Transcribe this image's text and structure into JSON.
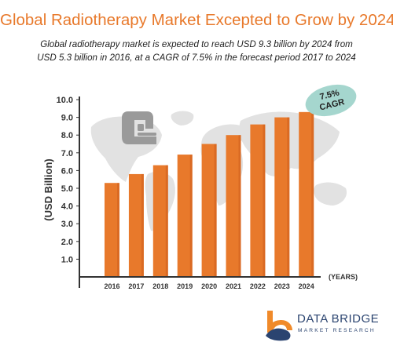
{
  "header": {
    "title": "Global Radiotherapy Market Excepted to Grow by 2024",
    "subtitle_line1": "Global radiotherapy market is expected to reach USD 9.3 billion by 2024 from",
    "subtitle_line2": "USD 5.3 billion in 2016, at a CAGR of 7.5% in the forecast period 2017 to 2024"
  },
  "badge": {
    "line1": "7.5%",
    "line2": "CAGR",
    "color": "#A5D6CE"
  },
  "brand": {
    "name": "DATA BRIDGE",
    "tagline": "MARKET RESEARCH",
    "orange": "#F08A2A",
    "navy": "#2B4470"
  },
  "colors": {
    "bar": "#E8792B",
    "bar_dark": "#C9591A",
    "map": "#E2E2E2",
    "icon": "#9A9A9A"
  },
  "chart_data": {
    "type": "bar",
    "categories": [
      "2016",
      "2017",
      "2018",
      "2019",
      "2020",
      "2021",
      "2022",
      "2023",
      "2024"
    ],
    "values": [
      5.3,
      5.8,
      6.3,
      6.9,
      7.5,
      8.0,
      8.6,
      9.0,
      9.3
    ],
    "title": "Global Radiotherapy Market Excepted to Grow by 2024",
    "xlabel": "(YEARS)",
    "ylabel": "(USD Billion)",
    "ylim": [
      0,
      10.0
    ],
    "yticks": [
      "1.0",
      "2.0",
      "3.0",
      "4.0",
      "5.0",
      "6.0",
      "7.0",
      "8.0",
      "9.0",
      "10.0"
    ],
    "grid": false,
    "legend": "none"
  }
}
